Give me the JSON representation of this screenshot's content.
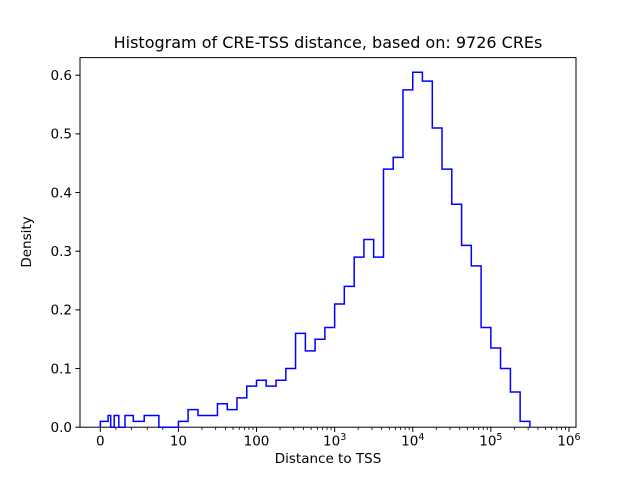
{
  "figure": {
    "background": "#ffffff",
    "frame_color": "#000000"
  },
  "chart_data": {
    "type": "bar",
    "subtype": "step-histogram",
    "title": "Histogram of CRE-TSS distance, based on: 9726 CREs",
    "xlabel": "Distance to TSS",
    "ylabel": "Density",
    "n_cres": 9726,
    "line_color": "#0000ff",
    "x_scale": "symlog",
    "grid": false,
    "legend": "none",
    "ylim": [
      0,
      0.63
    ],
    "y_ticks": [
      "0.0",
      "0.1",
      "0.2",
      "0.3",
      "0.4",
      "0.5",
      "0.6"
    ],
    "x_ticks": [
      {
        "value": 0,
        "base": "0",
        "exp": ""
      },
      {
        "value": 10,
        "base": "10",
        "exp": ""
      },
      {
        "value": 100,
        "base": "100",
        "exp": ""
      },
      {
        "value": 1000,
        "base": "10",
        "exp": "3"
      },
      {
        "value": 10000,
        "base": "10",
        "exp": "4"
      },
      {
        "value": 100000,
        "base": "10",
        "exp": "5"
      },
      {
        "value": 1000000,
        "base": "10",
        "exp": "6"
      }
    ],
    "bin_edges": [
      0,
      1,
      1.33,
      1.78,
      2.37,
      3.16,
      4.22,
      5.62,
      7.5,
      10,
      13.3,
      17.8,
      23.7,
      31.6,
      42.2,
      56.2,
      75,
      100,
      133,
      178,
      237,
      316,
      422,
      562,
      750,
      1000,
      1330,
      1780,
      2370,
      3160,
      4220,
      5620,
      7500,
      10000,
      13300,
      17800,
      23700,
      31600,
      42200,
      56200,
      75000,
      100000,
      133000,
      178000,
      237000,
      316000
    ],
    "densities": [
      0.01,
      0.02,
      0.0,
      0.02,
      0.0,
      0.02,
      0.01,
      0.02,
      0.0,
      0.01,
      0.03,
      0.02,
      0.02,
      0.04,
      0.03,
      0.05,
      0.07,
      0.08,
      0.07,
      0.08,
      0.1,
      0.16,
      0.13,
      0.15,
      0.17,
      0.21,
      0.24,
      0.29,
      0.32,
      0.29,
      0.44,
      0.46,
      0.575,
      0.605,
      0.59,
      0.51,
      0.44,
      0.38,
      0.31,
      0.275,
      0.17,
      0.135,
      0.1,
      0.06,
      0.01
    ]
  }
}
